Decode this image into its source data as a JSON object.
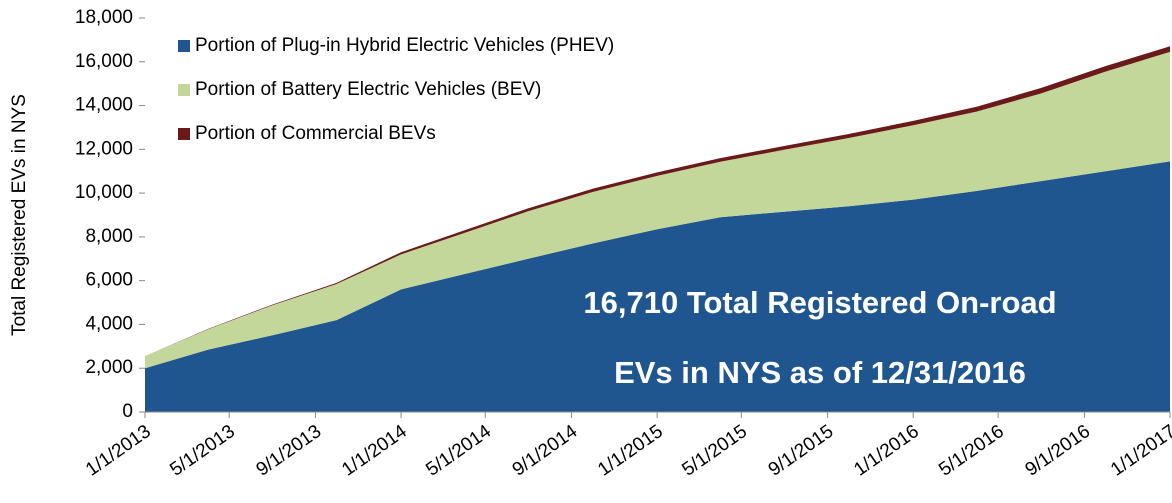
{
  "chart_data": {
    "type": "stacked_area",
    "y_label": "Total Registered EVs in NYS",
    "annotations": [
      "16,710 Total Registered On-road",
      "EVs in NYS as of 12/31/2016"
    ],
    "x": [
      "1/1/2013",
      "4/1/2013",
      "7/1/2013",
      "10/1/2013",
      "1/1/2014",
      "4/1/2014",
      "7/1/2014",
      "10/1/2014",
      "1/1/2015",
      "4/1/2015",
      "7/1/2015",
      "10/1/2015",
      "1/1/2016",
      "4/1/2016",
      "7/1/2016",
      "10/1/2016",
      "1/1/2017"
    ],
    "series": [
      {
        "name": "Portion of Plug-in Hybrid Electric Vehicles (PHEV)",
        "color": "#1f5690",
        "values": [
          2000,
          2850,
          3500,
          4200,
          5600,
          6300,
          7000,
          7700,
          8350,
          8900,
          9150,
          9400,
          9700,
          10100,
          10550,
          11000,
          11450
        ]
      },
      {
        "name": "Portion of Battery Electric Vehicles (BEV)",
        "color": "#c4d79b",
        "values": [
          550,
          930,
          1370,
          1650,
          1600,
          1880,
          2170,
          2350,
          2440,
          2530,
          2830,
          3120,
          3400,
          3630,
          4000,
          4550,
          5000
        ]
      },
      {
        "name": "Portion of Commercial BEVs",
        "color": "#6b1a1a",
        "values": [
          0,
          20,
          30,
          50,
          100,
          120,
          130,
          150,
          160,
          170,
          170,
          180,
          200,
          220,
          250,
          250,
          260
        ]
      }
    ],
    "xlim": [
      "1/1/2013",
      "1/1/2017"
    ],
    "xticks": [
      "1/1/2013",
      "5/1/2013",
      "9/1/2013",
      "1/1/2014",
      "5/1/2014",
      "9/1/2014",
      "1/1/2015",
      "5/1/2015",
      "9/1/2015",
      "1/1/2016",
      "5/1/2016",
      "9/1/2016",
      "1/1/2017"
    ],
    "ylim": [
      0,
      18000
    ],
    "yticks": [
      0,
      {
        "value": 2000,
        "label": "2,000"
      },
      {
        "value": 4000,
        "label": "4,000"
      },
      {
        "value": 6000,
        "label": "6,000"
      },
      {
        "value": 8000,
        "label": "8,000"
      },
      {
        "value": 10000,
        "label": "10,000"
      },
      {
        "value": 12000,
        "label": "12,000"
      },
      {
        "value": 14000,
        "label": "14,000"
      },
      {
        "value": 16000,
        "label": "16,000"
      },
      {
        "value": 18000,
        "label": "18,000"
      }
    ],
    "legend": "upper left"
  }
}
